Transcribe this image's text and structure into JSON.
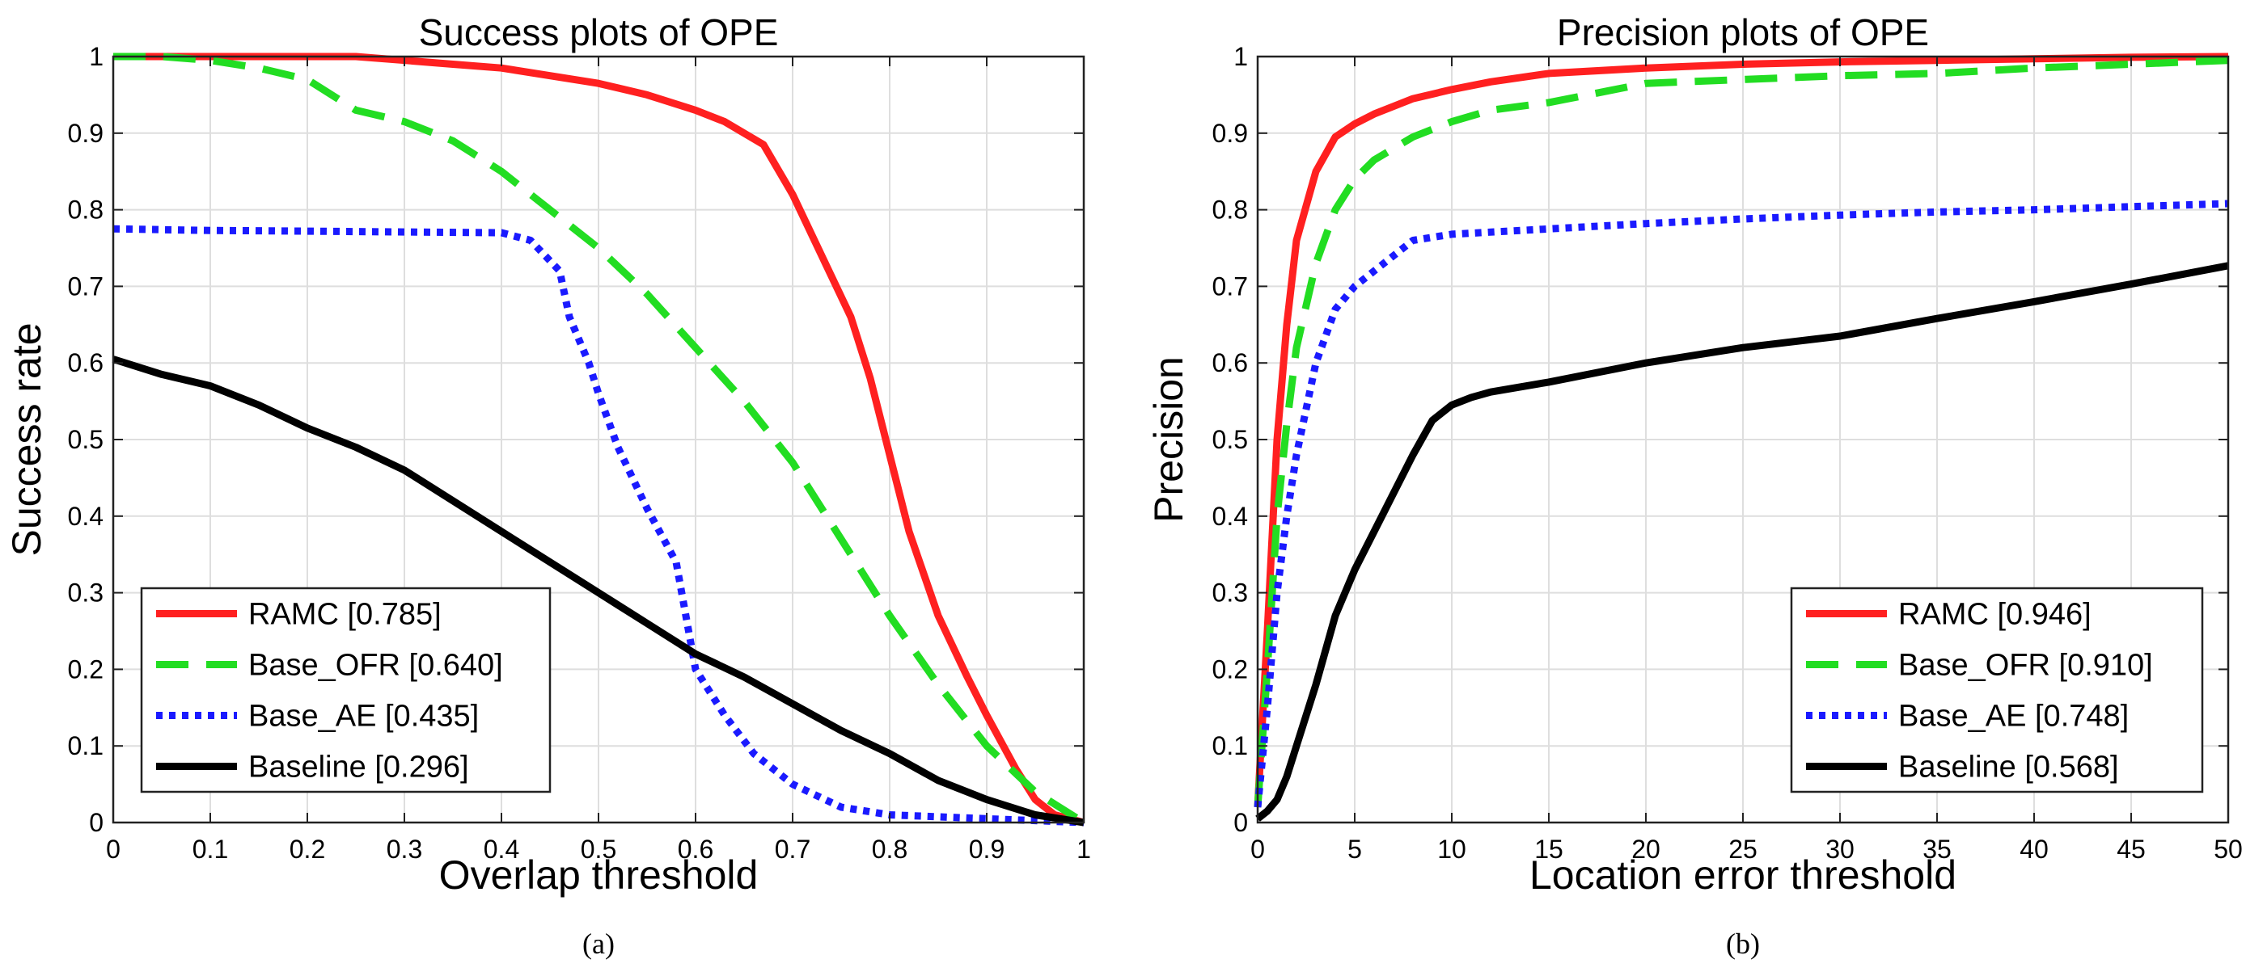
{
  "chart_data": [
    {
      "type": "line",
      "title": "Success plots of OPE",
      "xlabel": "Overlap threshold",
      "ylabel": "Success rate",
      "caption": "(a)",
      "xlim": [
        0,
        1
      ],
      "ylim": [
        0,
        1
      ],
      "grid": true,
      "legend_position": "bottom-left",
      "x_ticks": [
        0,
        0.1,
        0.2,
        0.3,
        0.4,
        0.5,
        0.6,
        0.7,
        0.8,
        0.9,
        1
      ],
      "x_tick_labels": [
        "0",
        "0.1",
        "0.2",
        "0.3",
        "0.4",
        "0.5",
        "0.6",
        "0.7",
        "0.8",
        "0.9",
        "1"
      ],
      "y_ticks": [
        0,
        0.1,
        0.2,
        0.3,
        0.4,
        0.5,
        0.6,
        0.7,
        0.8,
        0.9,
        1
      ],
      "y_tick_labels": [
        "0",
        "0.1",
        "0.2",
        "0.3",
        "0.4",
        "0.5",
        "0.6",
        "0.7",
        "0.8",
        "0.9",
        "1"
      ],
      "series": [
        {
          "name": "RAMC",
          "legend": "RAMC [0.785]",
          "color": "#ff2020",
          "dash": "solid",
          "x": [
            0,
            0.05,
            0.1,
            0.15,
            0.2,
            0.25,
            0.3,
            0.35,
            0.4,
            0.45,
            0.5,
            0.55,
            0.6,
            0.63,
            0.67,
            0.7,
            0.73,
            0.76,
            0.78,
            0.8,
            0.82,
            0.85,
            0.88,
            0.9,
            0.93,
            0.95,
            0.97,
            1.0
          ],
          "y": [
            1,
            1,
            1,
            1,
            1,
            1,
            0.995,
            0.99,
            0.985,
            0.975,
            0.965,
            0.95,
            0.93,
            0.915,
            0.885,
            0.82,
            0.74,
            0.66,
            0.58,
            0.48,
            0.38,
            0.27,
            0.19,
            0.14,
            0.07,
            0.03,
            0.01,
            0.0
          ]
        },
        {
          "name": "Base_OFR",
          "legend": "Base_OFR [0.640]",
          "color": "#22dd22",
          "dash": "dashed",
          "x": [
            0,
            0.05,
            0.1,
            0.15,
            0.2,
            0.25,
            0.3,
            0.35,
            0.4,
            0.45,
            0.5,
            0.55,
            0.6,
            0.65,
            0.7,
            0.75,
            0.8,
            0.85,
            0.9,
            0.95,
            1.0
          ],
          "y": [
            1,
            1,
            0.995,
            0.985,
            0.97,
            0.93,
            0.915,
            0.89,
            0.85,
            0.8,
            0.75,
            0.69,
            0.62,
            0.55,
            0.47,
            0.37,
            0.27,
            0.18,
            0.1,
            0.04,
            0.0
          ]
        },
        {
          "name": "Base_AE",
          "legend": "Base_AE [0.435]",
          "color": "#1a1aff",
          "dash": "dotted",
          "x": [
            0,
            0.1,
            0.2,
            0.3,
            0.4,
            0.43,
            0.46,
            0.47,
            0.49,
            0.5,
            0.52,
            0.55,
            0.58,
            0.6,
            0.63,
            0.66,
            0.7,
            0.75,
            0.8,
            0.9,
            1.0
          ],
          "y": [
            0.775,
            0.773,
            0.772,
            0.771,
            0.77,
            0.76,
            0.72,
            0.66,
            0.6,
            0.56,
            0.49,
            0.41,
            0.34,
            0.2,
            0.14,
            0.09,
            0.05,
            0.02,
            0.01,
            0.005,
            0.0
          ]
        },
        {
          "name": "Baseline",
          "legend": "Baseline [0.296]",
          "color": "#000000",
          "dash": "solid",
          "x": [
            0,
            0.05,
            0.1,
            0.15,
            0.2,
            0.25,
            0.3,
            0.35,
            0.4,
            0.45,
            0.5,
            0.55,
            0.6,
            0.65,
            0.7,
            0.75,
            0.8,
            0.85,
            0.9,
            0.95,
            1.0
          ],
          "y": [
            0.605,
            0.585,
            0.57,
            0.545,
            0.515,
            0.49,
            0.46,
            0.42,
            0.38,
            0.34,
            0.3,
            0.26,
            0.22,
            0.19,
            0.155,
            0.12,
            0.09,
            0.055,
            0.03,
            0.01,
            0.0
          ]
        }
      ]
    },
    {
      "type": "line",
      "title": "Precision plots of OPE",
      "xlabel": "Location error threshold",
      "ylabel": "Precision",
      "caption": "(b)",
      "xlim": [
        0,
        50
      ],
      "ylim": [
        0,
        1
      ],
      "grid": true,
      "legend_position": "bottom-right",
      "x_ticks": [
        0,
        5,
        10,
        15,
        20,
        25,
        30,
        35,
        40,
        45,
        50
      ],
      "x_tick_labels": [
        "0",
        "5",
        "10",
        "15",
        "20",
        "25",
        "30",
        "35",
        "40",
        "45",
        "50"
      ],
      "y_ticks": [
        0,
        0.1,
        0.2,
        0.3,
        0.4,
        0.5,
        0.6,
        0.7,
        0.8,
        0.9,
        1
      ],
      "y_tick_labels": [
        "0",
        "0.1",
        "0.2",
        "0.3",
        "0.4",
        "0.5",
        "0.6",
        "0.7",
        "0.8",
        "0.9",
        "1"
      ],
      "series": [
        {
          "name": "RAMC",
          "legend": "RAMC [0.946]",
          "color": "#ff2020",
          "dash": "solid",
          "x": [
            0,
            0.5,
            1,
            1.5,
            2,
            3,
            4,
            5,
            6,
            8,
            10,
            12,
            15,
            20,
            25,
            30,
            35,
            40,
            45,
            50
          ],
          "y": [
            0.02,
            0.25,
            0.5,
            0.65,
            0.76,
            0.85,
            0.895,
            0.912,
            0.925,
            0.945,
            0.957,
            0.967,
            0.978,
            0.985,
            0.99,
            0.993,
            0.995,
            0.997,
            0.999,
            1.0
          ]
        },
        {
          "name": "Base_OFR",
          "legend": "Base_OFR [0.910]",
          "color": "#22dd22",
          "dash": "dashed",
          "x": [
            0,
            0.5,
            1,
            1.5,
            2,
            3,
            4,
            5,
            6,
            8,
            10,
            12,
            15,
            18,
            20,
            25,
            30,
            35,
            40,
            45,
            50
          ],
          "y": [
            0.02,
            0.2,
            0.4,
            0.52,
            0.62,
            0.73,
            0.8,
            0.84,
            0.865,
            0.895,
            0.915,
            0.93,
            0.94,
            0.955,
            0.965,
            0.97,
            0.975,
            0.978,
            0.985,
            0.99,
            0.995
          ]
        },
        {
          "name": "Base_AE",
          "legend": "Base_AE [0.748]",
          "color": "#1a1aff",
          "dash": "dotted",
          "x": [
            0,
            0.5,
            1,
            1.5,
            2,
            3,
            4,
            5,
            6,
            7,
            8,
            10,
            15,
            20,
            25,
            30,
            35,
            40,
            45,
            50
          ],
          "y": [
            0.02,
            0.15,
            0.3,
            0.4,
            0.48,
            0.6,
            0.67,
            0.7,
            0.72,
            0.74,
            0.76,
            0.768,
            0.775,
            0.782,
            0.788,
            0.793,
            0.797,
            0.8,
            0.804,
            0.808
          ]
        },
        {
          "name": "Baseline",
          "legend": "Baseline [0.568]",
          "color": "#000000",
          "dash": "solid",
          "x": [
            0,
            0.5,
            1,
            1.5,
            2,
            3,
            4,
            5,
            6,
            7,
            8,
            9,
            10,
            11,
            12,
            15,
            20,
            25,
            30,
            35,
            40,
            45,
            50
          ],
          "y": [
            0.005,
            0.015,
            0.03,
            0.06,
            0.1,
            0.18,
            0.27,
            0.33,
            0.38,
            0.43,
            0.48,
            0.525,
            0.545,
            0.555,
            0.562,
            0.575,
            0.6,
            0.62,
            0.635,
            0.658,
            0.68,
            0.703,
            0.727
          ]
        }
      ]
    }
  ]
}
